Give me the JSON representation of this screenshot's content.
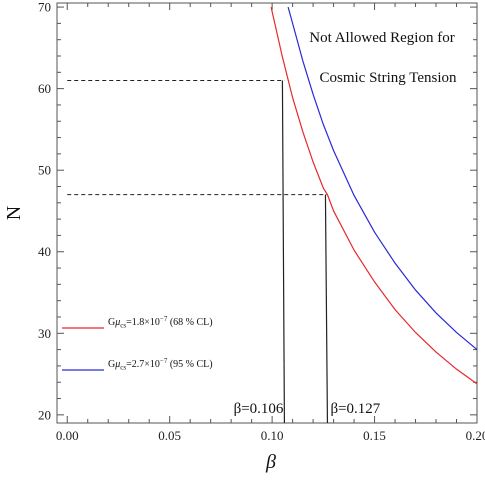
{
  "chart_data": {
    "type": "line",
    "title": "",
    "xlabel": "β",
    "ylabel": "N",
    "xlim": [
      -0.005,
      0.2
    ],
    "ylim": [
      19,
      70.5
    ],
    "xticks": [
      0.0,
      0.05,
      0.1,
      0.15,
      0.2
    ],
    "xtick_labels": [
      "0.00",
      "0.05",
      "0.10",
      "0.15",
      "0.20"
    ],
    "yticks": [
      20,
      30,
      40,
      50,
      60,
      70
    ],
    "ytick_labels": [
      "20",
      "30",
      "40",
      "50",
      "60",
      "70"
    ],
    "grid": false,
    "legend_position": "lower-left",
    "series": [
      {
        "name": "Gμcs=1.8×10−7 (68 % CL)",
        "name_parts": {
          "g": "G",
          "mu": "μ",
          "sub": "cs",
          "rest": "=1.8×10",
          "sup": "−7",
          "cl": " (68 % CL)"
        },
        "color": "#e8282c",
        "x": [
          0.0995,
          0.105,
          0.11,
          0.115,
          0.12,
          0.125,
          0.127,
          0.13,
          0.14,
          0.15,
          0.16,
          0.17,
          0.18,
          0.19,
          0.2
        ],
        "y": [
          70.0,
          63.9,
          58.9,
          54.7,
          51.0,
          47.8,
          47.0,
          45.0,
          40.2,
          36.3,
          32.9,
          30.1,
          27.7,
          25.6,
          23.8
        ]
      },
      {
        "name": "Gμcs=2.7×10−7 (95 % CL)",
        "name_parts": {
          "g": "G",
          "mu": "μ",
          "sub": "cs",
          "rest": "=2.7×10",
          "sup": "−7",
          "cl": " (95 % CL)"
        },
        "color": "#2a2ad6",
        "x": [
          0.1078,
          0.11,
          0.115,
          0.12,
          0.125,
          0.13,
          0.14,
          0.15,
          0.16,
          0.17,
          0.18,
          0.19,
          0.2
        ],
        "y": [
          70.0,
          68.0,
          63.4,
          59.3,
          55.6,
          52.4,
          46.9,
          42.4,
          38.6,
          35.3,
          32.5,
          30.1,
          28.0
        ]
      }
    ],
    "reference_lines": [
      {
        "beta": 0.106,
        "N": 61
      },
      {
        "beta": 0.127,
        "N": 47
      }
    ],
    "annotations": {
      "region_line1": "Not Allowed Region for",
      "region_line2": "Cosmic String Tension",
      "beta_label_1": "β=0.106",
      "beta_label_2": "β=0.127"
    }
  }
}
